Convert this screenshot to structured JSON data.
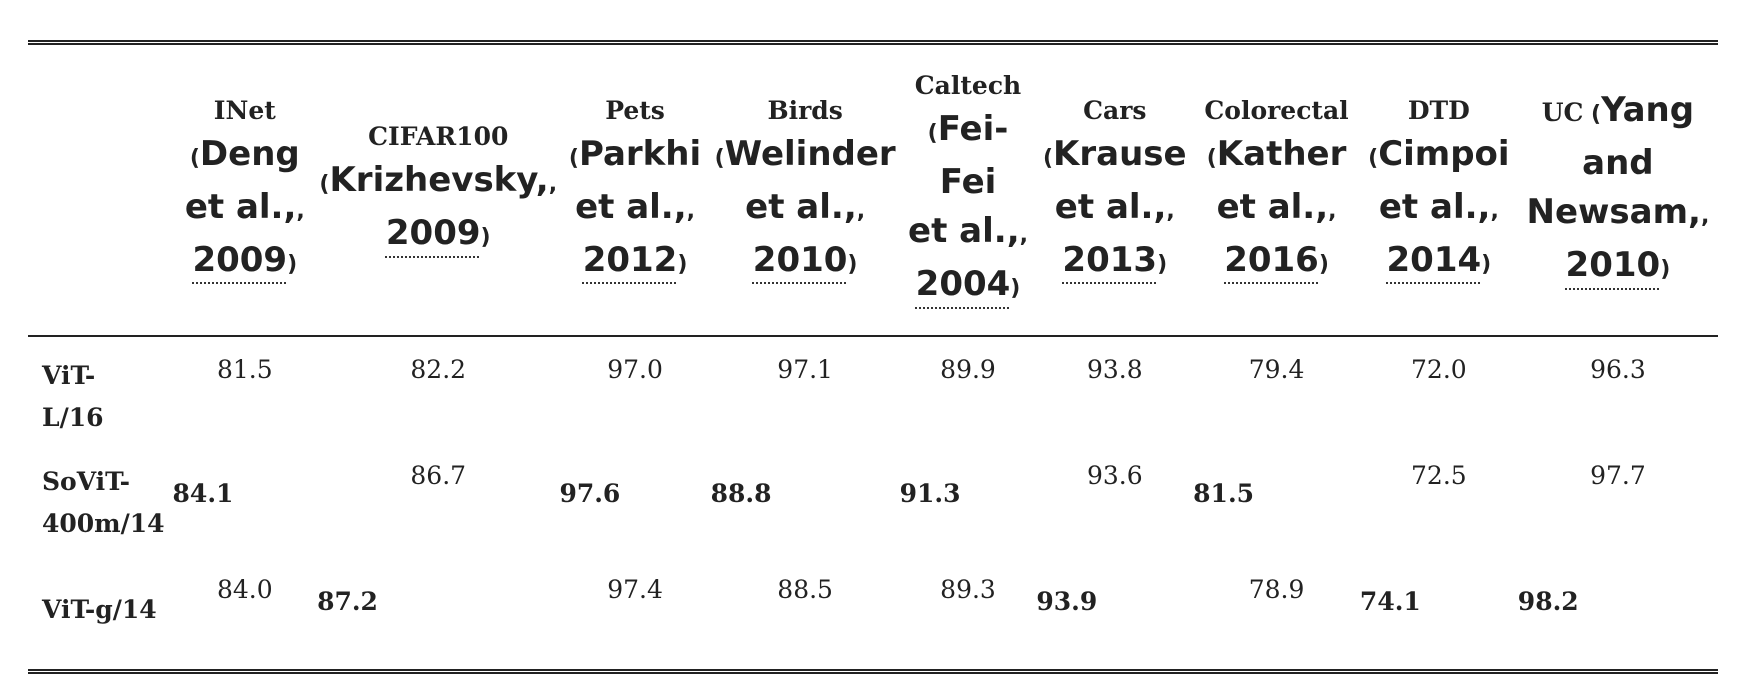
{
  "columns": [
    {
      "name": "INet",
      "cite_a": "Deng",
      "cite_b": "et al.,",
      "year": "2009"
    },
    {
      "name": "CIFAR100",
      "cite_a": "Krizhevsky,",
      "year": "2009"
    },
    {
      "name": "Pets",
      "cite_a": "Parkhi",
      "cite_b": "et al.,",
      "year": "2012"
    },
    {
      "name": "Birds",
      "cite_a": "Welinder",
      "cite_b": "et al.,",
      "year": "2010"
    },
    {
      "name": "Caltech",
      "cite_a": "Fei-",
      "cite_b": "Fei",
      "cite_c": "et al.,",
      "year": "2004"
    },
    {
      "name": "Cars",
      "cite_a": "Krause",
      "cite_b": "et al.,",
      "year": "2013"
    },
    {
      "name": "Colorectal",
      "cite_a": "Kather",
      "cite_b": "et al.,",
      "year": "2016"
    },
    {
      "name": "DTD",
      "cite_a": "Cimpoi",
      "cite_b": "et al.,",
      "year": "2014"
    },
    {
      "name": "UC",
      "cite_a": "Yang",
      "cite_b": "and",
      "cite_c": "Newsam,",
      "year": "2010"
    }
  ],
  "rows": [
    {
      "model_a": "ViT-",
      "model_b": "L/16",
      "values": [
        "81.5",
        "82.2",
        "97.0",
        "97.1",
        "89.9",
        "93.8",
        "79.4",
        "72.0",
        "96.3"
      ]
    },
    {
      "model_a": "SoViT-",
      "model_b": "400m/14",
      "values": [
        "84.1",
        "86.7",
        "97.6",
        "88.8",
        "91.3",
        "93.6",
        "81.5",
        "72.5",
        "97.7"
      ]
    },
    {
      "model_a": "ViT-g/14",
      "values": [
        "84.0",
        "87.2",
        "97.4",
        "88.5",
        "89.3",
        "93.9",
        "78.9",
        "74.1",
        "98.2"
      ]
    }
  ]
}
